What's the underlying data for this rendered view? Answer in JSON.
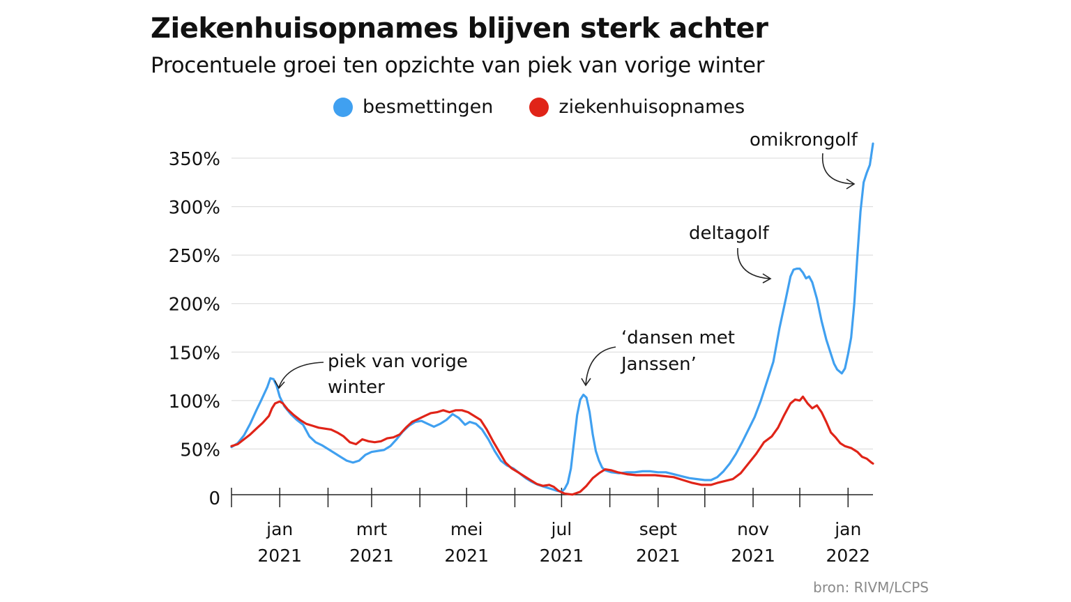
{
  "header": {
    "title": "Ziekenhuisopnames blijven sterk achter",
    "subtitle": "Procentuele groei ten opzichte van piek van vorige winter"
  },
  "source": "bron: RIVM/LCPS",
  "colors": {
    "besmettingen": "#40a0f0",
    "ziekenhuisopnames": "#e02418",
    "grid": "#d8d8d8",
    "axis": "#222222"
  },
  "chart_data": {
    "type": "line",
    "title": "Ziekenhuisopnames blijven sterk achter",
    "subtitle": "Procentuele groei ten opzichte van piek van vorige winter",
    "legend_position": "top",
    "grid": "horizontal",
    "ylim": [
      0,
      350
    ],
    "yticks": [
      {
        "value": 0,
        "label": "0"
      },
      {
        "value": 50,
        "label": "50%"
      },
      {
        "value": 100,
        "label": "100%"
      },
      {
        "value": 150,
        "label": "150%"
      },
      {
        "value": 200,
        "label": "200%"
      },
      {
        "value": 250,
        "label": "250%"
      },
      {
        "value": 300,
        "label": "300%"
      },
      {
        "value": 350,
        "label": "350%"
      }
    ],
    "xlim": [
      "2020-12-01",
      "2022-01-17"
    ],
    "xticks": [
      {
        "date": "2021-01-01",
        "line1": "jan",
        "line2": "2021"
      },
      {
        "date": "2021-03-01",
        "line1": "mrt",
        "line2": "2021"
      },
      {
        "date": "2021-05-01",
        "line1": "mei",
        "line2": "2021"
      },
      {
        "date": "2021-07-01",
        "line1": "jul",
        "line2": "2021"
      },
      {
        "date": "2021-09-01",
        "line1": "sept",
        "line2": "2021"
      },
      {
        "date": "2021-11-01",
        "line1": "nov",
        "line2": "2021"
      },
      {
        "date": "2022-01-01",
        "line1": "jan",
        "line2": "2022"
      }
    ],
    "series": [
      {
        "name": "besmettingen",
        "color": "#40a0f0",
        "points": [
          [
            "2020-12-01",
            52
          ],
          [
            "2020-12-05",
            56
          ],
          [
            "2020-12-09",
            64
          ],
          [
            "2020-12-13",
            76
          ],
          [
            "2020-12-17",
            90
          ],
          [
            "2020-12-20",
            100
          ],
          [
            "2020-12-24",
            114
          ],
          [
            "2020-12-26",
            123
          ],
          [
            "2020-12-28",
            122
          ],
          [
            "2020-12-30",
            115
          ],
          [
            "2021-01-01",
            104
          ],
          [
            "2021-01-04",
            94
          ],
          [
            "2021-01-08",
            86
          ],
          [
            "2021-01-12",
            80
          ],
          [
            "2021-01-16",
            75
          ],
          [
            "2021-01-20",
            63
          ],
          [
            "2021-01-24",
            57
          ],
          [
            "2021-01-28",
            54
          ],
          [
            "2021-02-01",
            50
          ],
          [
            "2021-02-05",
            46
          ],
          [
            "2021-02-09",
            42
          ],
          [
            "2021-02-13",
            38
          ],
          [
            "2021-02-17",
            36
          ],
          [
            "2021-02-21",
            38
          ],
          [
            "2021-02-25",
            44
          ],
          [
            "2021-03-01",
            47
          ],
          [
            "2021-03-05",
            48
          ],
          [
            "2021-03-09",
            49
          ],
          [
            "2021-03-13",
            53
          ],
          [
            "2021-03-17",
            60
          ],
          [
            "2021-03-21",
            68
          ],
          [
            "2021-03-25",
            74
          ],
          [
            "2021-03-29",
            78
          ],
          [
            "2021-04-02",
            79
          ],
          [
            "2021-04-06",
            76
          ],
          [
            "2021-04-10",
            73
          ],
          [
            "2021-04-14",
            76
          ],
          [
            "2021-04-18",
            80
          ],
          [
            "2021-04-22",
            86
          ],
          [
            "2021-04-26",
            82
          ],
          [
            "2021-04-30",
            75
          ],
          [
            "2021-05-03",
            78
          ],
          [
            "2021-05-07",
            76
          ],
          [
            "2021-05-11",
            70
          ],
          [
            "2021-05-15",
            60
          ],
          [
            "2021-05-19",
            48
          ],
          [
            "2021-05-23",
            38
          ],
          [
            "2021-05-27",
            33
          ],
          [
            "2021-05-31",
            30
          ],
          [
            "2021-06-04",
            25
          ],
          [
            "2021-06-08",
            20
          ],
          [
            "2021-06-12",
            16
          ],
          [
            "2021-06-16",
            13
          ],
          [
            "2021-06-20",
            11
          ],
          [
            "2021-06-24",
            9
          ],
          [
            "2021-06-28",
            7
          ],
          [
            "2021-07-01",
            6
          ],
          [
            "2021-07-03",
            9
          ],
          [
            "2021-07-05",
            15
          ],
          [
            "2021-07-07",
            30
          ],
          [
            "2021-07-09",
            58
          ],
          [
            "2021-07-11",
            85
          ],
          [
            "2021-07-13",
            101
          ],
          [
            "2021-07-15",
            106
          ],
          [
            "2021-07-17",
            103
          ],
          [
            "2021-07-19",
            88
          ],
          [
            "2021-07-21",
            65
          ],
          [
            "2021-07-23",
            48
          ],
          [
            "2021-07-25",
            38
          ],
          [
            "2021-07-27",
            31
          ],
          [
            "2021-07-29",
            28
          ],
          [
            "2021-08-02",
            26
          ],
          [
            "2021-08-07",
            25
          ],
          [
            "2021-08-12",
            26
          ],
          [
            "2021-08-17",
            26
          ],
          [
            "2021-08-22",
            27
          ],
          [
            "2021-08-27",
            27
          ],
          [
            "2021-09-01",
            26
          ],
          [
            "2021-09-06",
            26
          ],
          [
            "2021-09-11",
            24
          ],
          [
            "2021-09-16",
            22
          ],
          [
            "2021-09-21",
            20
          ],
          [
            "2021-09-26",
            19
          ],
          [
            "2021-10-01",
            18
          ],
          [
            "2021-10-05",
            18
          ],
          [
            "2021-10-09",
            21
          ],
          [
            "2021-10-13",
            27
          ],
          [
            "2021-10-17",
            35
          ],
          [
            "2021-10-21",
            45
          ],
          [
            "2021-10-25",
            57
          ],
          [
            "2021-10-29",
            70
          ],
          [
            "2021-11-02",
            83
          ],
          [
            "2021-11-06",
            100
          ],
          [
            "2021-11-10",
            120
          ],
          [
            "2021-11-14",
            140
          ],
          [
            "2021-11-18",
            175
          ],
          [
            "2021-11-22",
            205
          ],
          [
            "2021-11-25",
            228
          ],
          [
            "2021-11-27",
            235
          ],
          [
            "2021-11-29",
            236
          ],
          [
            "2021-12-01",
            236
          ],
          [
            "2021-12-03",
            232
          ],
          [
            "2021-12-05",
            226
          ],
          [
            "2021-12-07",
            228
          ],
          [
            "2021-12-09",
            222
          ],
          [
            "2021-12-12",
            205
          ],
          [
            "2021-12-15",
            182
          ],
          [
            "2021-12-18",
            163
          ],
          [
            "2021-12-21",
            148
          ],
          [
            "2021-12-23",
            138
          ],
          [
            "2021-12-25",
            132
          ],
          [
            "2021-12-28",
            128
          ],
          [
            "2021-12-30",
            133
          ],
          [
            "2022-01-01",
            148
          ],
          [
            "2022-01-03",
            165
          ],
          [
            "2022-01-05",
            200
          ],
          [
            "2022-01-07",
            250
          ],
          [
            "2022-01-09",
            295
          ],
          [
            "2022-01-11",
            325
          ],
          [
            "2022-01-13",
            335
          ],
          [
            "2022-01-15",
            343
          ],
          [
            "2022-01-17",
            365
          ]
        ]
      },
      {
        "name": "ziekenhuisopnames",
        "color": "#e02418",
        "points": [
          [
            "2020-12-01",
            53
          ],
          [
            "2020-12-05",
            55
          ],
          [
            "2020-12-09",
            60
          ],
          [
            "2020-12-13",
            65
          ],
          [
            "2020-12-17",
            71
          ],
          [
            "2020-12-21",
            77
          ],
          [
            "2020-12-25",
            84
          ],
          [
            "2020-12-27",
            92
          ],
          [
            "2020-12-29",
            97
          ],
          [
            "2021-01-01",
            99
          ],
          [
            "2021-01-03",
            97
          ],
          [
            "2021-01-06",
            91
          ],
          [
            "2021-01-10",
            85
          ],
          [
            "2021-01-14",
            80
          ],
          [
            "2021-01-18",
            76
          ],
          [
            "2021-01-22",
            74
          ],
          [
            "2021-01-26",
            72
          ],
          [
            "2021-01-30",
            71
          ],
          [
            "2021-02-03",
            70
          ],
          [
            "2021-02-07",
            67
          ],
          [
            "2021-02-11",
            63
          ],
          [
            "2021-02-15",
            57
          ],
          [
            "2021-02-19",
            55
          ],
          [
            "2021-02-23",
            60
          ],
          [
            "2021-02-27",
            58
          ],
          [
            "2021-03-03",
            57
          ],
          [
            "2021-03-07",
            58
          ],
          [
            "2021-03-11",
            61
          ],
          [
            "2021-03-15",
            62
          ],
          [
            "2021-03-19",
            65
          ],
          [
            "2021-03-23",
            72
          ],
          [
            "2021-03-27",
            78
          ],
          [
            "2021-03-31",
            81
          ],
          [
            "2021-04-04",
            84
          ],
          [
            "2021-04-08",
            87
          ],
          [
            "2021-04-12",
            88
          ],
          [
            "2021-04-16",
            90
          ],
          [
            "2021-04-20",
            88
          ],
          [
            "2021-04-24",
            90
          ],
          [
            "2021-04-28",
            90
          ],
          [
            "2021-05-02",
            88
          ],
          [
            "2021-05-06",
            84
          ],
          [
            "2021-05-10",
            80
          ],
          [
            "2021-05-14",
            70
          ],
          [
            "2021-05-18",
            58
          ],
          [
            "2021-05-22",
            47
          ],
          [
            "2021-05-26",
            36
          ],
          [
            "2021-05-30",
            30
          ],
          [
            "2021-06-03",
            26
          ],
          [
            "2021-06-07",
            22
          ],
          [
            "2021-06-11",
            18
          ],
          [
            "2021-06-15",
            14
          ],
          [
            "2021-06-19",
            12
          ],
          [
            "2021-06-23",
            13
          ],
          [
            "2021-06-26",
            11
          ],
          [
            "2021-06-29",
            7
          ],
          [
            "2021-07-03",
            4
          ],
          [
            "2021-07-08",
            3
          ],
          [
            "2021-07-13",
            6
          ],
          [
            "2021-07-17",
            12
          ],
          [
            "2021-07-21",
            20
          ],
          [
            "2021-07-25",
            25
          ],
          [
            "2021-07-29",
            29
          ],
          [
            "2021-08-02",
            28
          ],
          [
            "2021-08-06",
            26
          ],
          [
            "2021-08-12",
            24
          ],
          [
            "2021-08-18",
            23
          ],
          [
            "2021-08-24",
            23
          ],
          [
            "2021-08-30",
            23
          ],
          [
            "2021-09-05",
            22
          ],
          [
            "2021-09-11",
            21
          ],
          [
            "2021-09-17",
            18
          ],
          [
            "2021-09-23",
            15
          ],
          [
            "2021-09-29",
            13
          ],
          [
            "2021-10-05",
            13
          ],
          [
            "2021-10-09",
            15
          ],
          [
            "2021-10-14",
            17
          ],
          [
            "2021-10-19",
            19
          ],
          [
            "2021-10-24",
            25
          ],
          [
            "2021-10-29",
            35
          ],
          [
            "2021-11-03",
            45
          ],
          [
            "2021-11-08",
            57
          ],
          [
            "2021-11-13",
            63
          ],
          [
            "2021-11-17",
            72
          ],
          [
            "2021-11-21",
            85
          ],
          [
            "2021-11-25",
            97
          ],
          [
            "2021-11-28",
            101
          ],
          [
            "2021-12-01",
            100
          ],
          [
            "2021-12-03",
            104
          ],
          [
            "2021-12-06",
            97
          ],
          [
            "2021-12-09",
            92
          ],
          [
            "2021-12-12",
            95
          ],
          [
            "2021-12-15",
            88
          ],
          [
            "2021-12-18",
            78
          ],
          [
            "2021-12-21",
            67
          ],
          [
            "2021-12-24",
            62
          ],
          [
            "2021-12-27",
            56
          ],
          [
            "2021-12-30",
            53
          ],
          [
            "2022-01-03",
            51
          ],
          [
            "2022-01-07",
            47
          ],
          [
            "2022-01-10",
            42
          ],
          [
            "2022-01-13",
            40
          ],
          [
            "2022-01-16",
            36
          ],
          [
            "2022-01-17",
            35
          ]
        ]
      }
    ],
    "annotations": [
      {
        "id": "piek",
        "line1": "piek van vorige",
        "line2": "winter"
      },
      {
        "id": "janssen",
        "line1": "‘dansen met",
        "line2": "Janssen’"
      },
      {
        "id": "delta",
        "line1": "deltagolf"
      },
      {
        "id": "omikron",
        "line1": "omikrongolf"
      }
    ]
  }
}
